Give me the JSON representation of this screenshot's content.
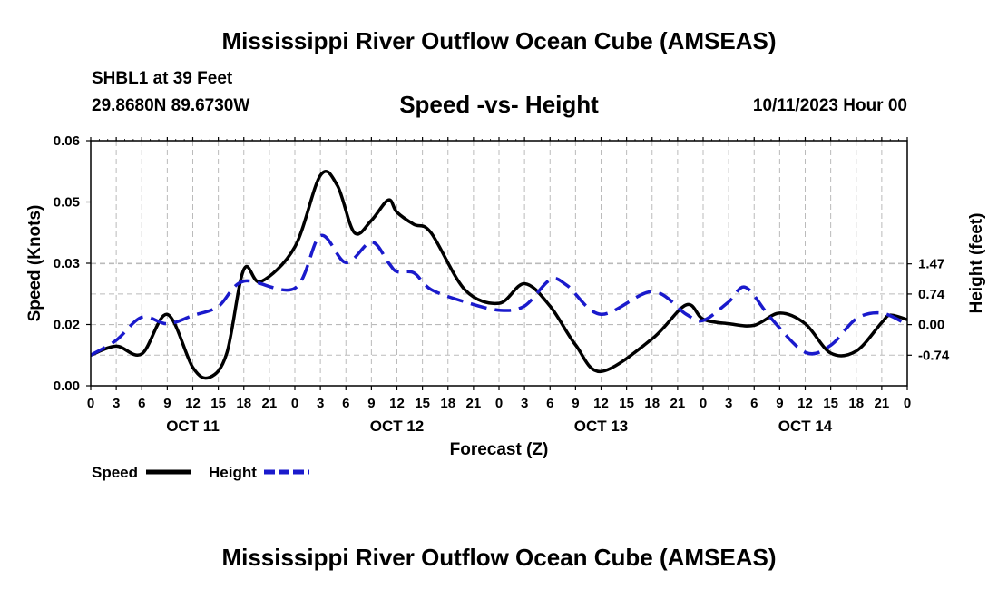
{
  "header": {
    "title": "Mississippi River Outflow Ocean Cube (AMSEAS)",
    "station": "SHBL1 at 39 Feet",
    "coords": "29.8680N  89.6730W",
    "subtitle": "Speed -vs- Height",
    "datetime": "10/11/2023 Hour 00"
  },
  "footer": {
    "title": "Mississippi River Outflow Ocean Cube (AMSEAS)"
  },
  "colors": {
    "speed": "#000000",
    "height": "#1a1acc",
    "grid": "#bbbbbb"
  },
  "chart_data": {
    "type": "line",
    "title": "Speed -vs- Height",
    "xlabel": "Forecast (Z)",
    "ylabel": "Speed (Knots)",
    "y2label": "Height (feet)",
    "x_range": [
      0,
      96
    ],
    "x_tick_step": 3,
    "x_tick_labels": [
      "0",
      "3",
      "6",
      "9",
      "12",
      "15",
      "18",
      "21",
      "0",
      "3",
      "6",
      "9",
      "12",
      "15",
      "18",
      "21",
      "0",
      "3",
      "6",
      "9",
      "12",
      "15",
      "18",
      "21",
      "0",
      "3",
      "6",
      "9",
      "12",
      "15",
      "18",
      "21",
      "0"
    ],
    "day_labels": [
      {
        "label": "OCT 11",
        "x": 12
      },
      {
        "label": "OCT 12",
        "x": 36
      },
      {
        "label": "OCT 13",
        "x": 60
      },
      {
        "label": "OCT 14",
        "x": 84
      }
    ],
    "ylim": [
      0,
      0.06
    ],
    "y_ticks": [
      {
        "v": 0,
        "label": "0.00"
      },
      {
        "v": 0.015,
        "label": "0.02"
      },
      {
        "v": 0.03,
        "label": "0.03"
      },
      {
        "v": 0.045,
        "label": "0.05"
      },
      {
        "v": 0.06,
        "label": "0.06"
      }
    ],
    "y2lim": [
      -1.48,
      4.45
    ],
    "y2_ticks": [
      {
        "v": -0.74,
        "label": "-0.74"
      },
      {
        "v": 0.0,
        "label": "0.00"
      },
      {
        "v": 0.74,
        "label": "0.74"
      },
      {
        "v": 1.47,
        "label": "1.47"
      }
    ],
    "legend": [
      {
        "name": "Speed",
        "style": "solid"
      },
      {
        "name": "Height",
        "style": "dashed"
      }
    ],
    "series": [
      {
        "name": "Speed",
        "axis": "left",
        "x": [
          0,
          3,
          6,
          9,
          12,
          14,
          16,
          18,
          20,
          24,
          27,
          29,
          31,
          33,
          35,
          36,
          38,
          40,
          44,
          48,
          51,
          54,
          57,
          60,
          66,
          70,
          72,
          75,
          78,
          81,
          84,
          87,
          90,
          93,
          94,
          96
        ],
        "values": [
          0.0075,
          0.0097,
          0.0078,
          0.0175,
          0.0045,
          0.0021,
          0.008,
          0.0285,
          0.0255,
          0.034,
          0.0515,
          0.049,
          0.0375,
          0.0405,
          0.0455,
          0.0425,
          0.0395,
          0.0375,
          0.0235,
          0.0202,
          0.025,
          0.0195,
          0.01,
          0.0035,
          0.0115,
          0.0198,
          0.0163,
          0.0152,
          0.0148,
          0.0178,
          0.0152,
          0.008,
          0.0085,
          0.0155,
          0.0173,
          0.0162
        ]
      },
      {
        "name": "Height",
        "axis": "right",
        "x": [
          0,
          3,
          6,
          9,
          12,
          15,
          18,
          24,
          27,
          30,
          33,
          35,
          36,
          38,
          40,
          44,
          48,
          51,
          54,
          56,
          60,
          66,
          70,
          72,
          75,
          77,
          80,
          84,
          87,
          90,
          93,
          96
        ],
        "values": [
          -0.74,
          -0.38,
          0.18,
          0.02,
          0.22,
          0.44,
          1.05,
          0.88,
          2.15,
          1.5,
          2.0,
          1.5,
          1.28,
          1.25,
          0.85,
          0.55,
          0.35,
          0.45,
          1.08,
          0.95,
          0.25,
          0.8,
          0.25,
          0.1,
          0.55,
          0.9,
          0.15,
          -0.67,
          -0.5,
          0.14,
          0.28,
          0.0
        ]
      }
    ]
  }
}
